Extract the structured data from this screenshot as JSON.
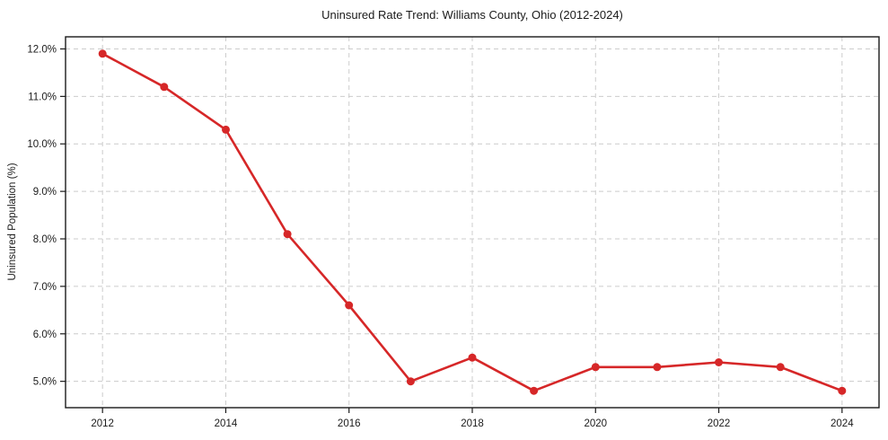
{
  "figure": {
    "background": "#ffffff"
  },
  "chart_data": {
    "type": "line",
    "title": "Uninsured Rate Trend: Williams County, Ohio (2012-2024)",
    "xlabel": "",
    "ylabel": "Uninsured Population (%)",
    "x": [
      2012,
      2013,
      2014,
      2015,
      2016,
      2017,
      2018,
      2019,
      2020,
      2021,
      2022,
      2023,
      2024
    ],
    "series": [
      {
        "values": [
          11.9,
          11.2,
          10.3,
          8.1,
          6.6,
          5.0,
          5.5,
          4.8,
          5.3,
          5.3,
          5.4,
          5.3,
          4.8
        ],
        "color": "#d62728",
        "marker": "circle"
      }
    ],
    "xlim": [
      2011.4,
      2024.6
    ],
    "ylim": [
      4.445,
      12.255
    ],
    "x_ticks": [
      2012,
      2014,
      2016,
      2018,
      2020,
      2022,
      2024
    ],
    "x_tick_labels": [
      "2012",
      "2014",
      "2016",
      "2018",
      "2020",
      "2022",
      "2024"
    ],
    "y_ticks": [
      5,
      6,
      7,
      8,
      9,
      10,
      11,
      12
    ],
    "y_tick_labels": [
      "5.0%",
      "6.0%",
      "7.0%",
      "8.0%",
      "9.0%",
      "10.0%",
      "11.0%",
      "12.0%"
    ],
    "grid": true,
    "grid_color": "#cccccc",
    "axis_color": "#1a1a1a",
    "text_color": "#1a1a1a",
    "legend_position": "none"
  }
}
